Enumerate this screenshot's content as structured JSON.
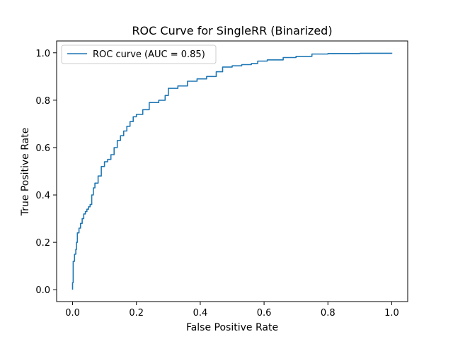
{
  "chart_data": {
    "type": "line",
    "title": "ROC Curve for SingleRR (Binarized)",
    "xlabel": "False Positive Rate",
    "ylabel": "True Positive Rate",
    "xlim": [
      -0.05,
      1.05
    ],
    "ylim": [
      -0.05,
      1.05
    ],
    "xticks": [
      0.0,
      0.2,
      0.4,
      0.6,
      0.8,
      1.0
    ],
    "yticks": [
      0.0,
      0.2,
      0.4,
      0.6,
      0.8,
      1.0
    ],
    "xtick_labels": [
      "0.0",
      "0.2",
      "0.4",
      "0.6",
      "0.8",
      "1.0"
    ],
    "ytick_labels": [
      "0.0",
      "0.2",
      "0.4",
      "0.6",
      "0.8",
      "1.0"
    ],
    "grid": false,
    "legend": "upper-left",
    "series": [
      {
        "name": "ROC curve (AUC = 0.85)",
        "color": "#1f77b4",
        "points": [
          [
            0.0,
            0.0
          ],
          [
            0.0,
            0.03
          ],
          [
            0.002,
            0.12
          ],
          [
            0.005,
            0.12
          ],
          [
            0.006,
            0.15
          ],
          [
            0.01,
            0.17
          ],
          [
            0.012,
            0.2
          ],
          [
            0.015,
            0.24
          ],
          [
            0.02,
            0.26
          ],
          [
            0.025,
            0.28
          ],
          [
            0.03,
            0.3
          ],
          [
            0.035,
            0.32
          ],
          [
            0.04,
            0.33
          ],
          [
            0.045,
            0.34
          ],
          [
            0.05,
            0.35
          ],
          [
            0.055,
            0.36
          ],
          [
            0.06,
            0.4
          ],
          [
            0.065,
            0.43
          ],
          [
            0.07,
            0.45
          ],
          [
            0.08,
            0.48
          ],
          [
            0.09,
            0.52
          ],
          [
            0.1,
            0.54
          ],
          [
            0.11,
            0.55
          ],
          [
            0.12,
            0.57
          ],
          [
            0.13,
            0.6
          ],
          [
            0.14,
            0.63
          ],
          [
            0.15,
            0.65
          ],
          [
            0.16,
            0.67
          ],
          [
            0.17,
            0.69
          ],
          [
            0.18,
            0.71
          ],
          [
            0.19,
            0.73
          ],
          [
            0.2,
            0.74
          ],
          [
            0.22,
            0.76
          ],
          [
            0.24,
            0.79
          ],
          [
            0.27,
            0.8
          ],
          [
            0.29,
            0.82
          ],
          [
            0.3,
            0.85
          ],
          [
            0.33,
            0.86
          ],
          [
            0.36,
            0.88
          ],
          [
            0.39,
            0.89
          ],
          [
            0.42,
            0.9
          ],
          [
            0.45,
            0.92
          ],
          [
            0.47,
            0.94
          ],
          [
            0.5,
            0.945
          ],
          [
            0.53,
            0.95
          ],
          [
            0.56,
            0.955
          ],
          [
            0.58,
            0.965
          ],
          [
            0.61,
            0.97
          ],
          [
            0.66,
            0.98
          ],
          [
            0.7,
            0.985
          ],
          [
            0.75,
            0.995
          ],
          [
            0.8,
            0.997
          ],
          [
            0.9,
            0.998
          ],
          [
            1.0,
            1.0
          ]
        ]
      }
    ]
  }
}
